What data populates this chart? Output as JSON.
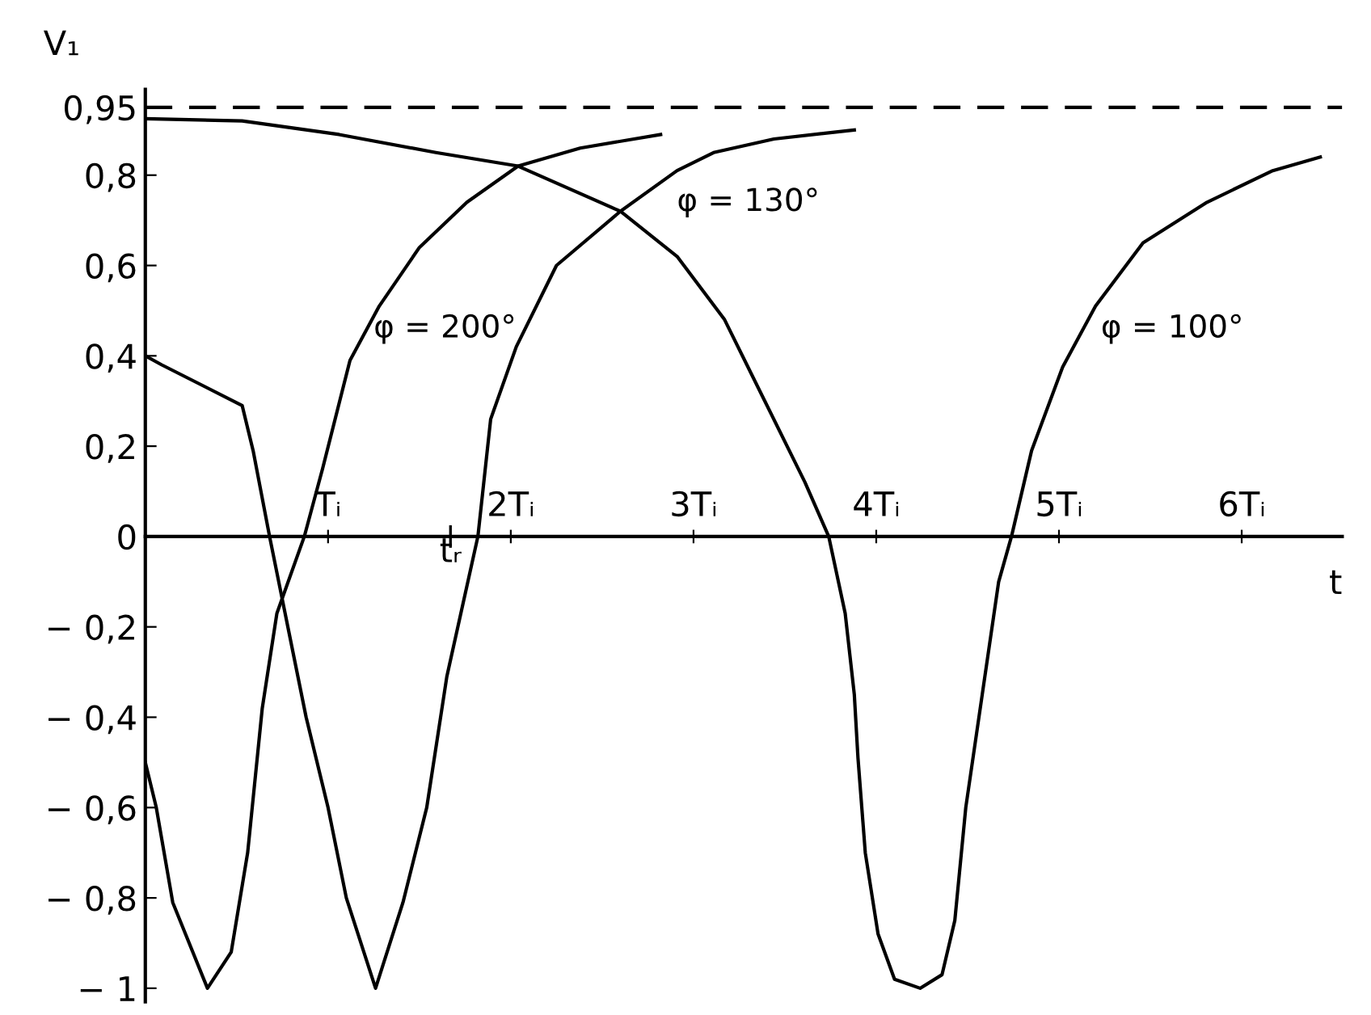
{
  "chart_data": {
    "type": "line",
    "xlabel": "t",
    "ylabel": "V₁",
    "xlim": [
      0,
      6.55
    ],
    "ylim": [
      -1.03,
      0.99
    ],
    "xticks": [
      {
        "value": 1,
        "label": "Tᵢ"
      },
      {
        "value": 2,
        "label": "2Tᵢ"
      },
      {
        "value": 3,
        "label": "3Tᵢ"
      },
      {
        "value": 4,
        "label": "4Tᵢ"
      },
      {
        "value": 5,
        "label": "5Tᵢ"
      },
      {
        "value": 6,
        "label": "6Tᵢ"
      }
    ],
    "yticks": [
      {
        "value": -1,
        "label": "− 1"
      },
      {
        "value": -0.8,
        "label": "− 0,8"
      },
      {
        "value": -0.6,
        "label": "− 0,6"
      },
      {
        "value": -0.4,
        "label": "− 0,4"
      },
      {
        "value": -0.2,
        "label": "− 0,2"
      },
      {
        "value": 0,
        "label": "0"
      },
      {
        "value": 0.2,
        "label": "0,2"
      },
      {
        "value": 0.4,
        "label": "0,4"
      },
      {
        "value": 0.6,
        "label": "0,6"
      },
      {
        "value": 0.8,
        "label": "0,8"
      },
      {
        "value": 0.95,
        "label": "0,95"
      }
    ],
    "grid": false,
    "legend": false,
    "marker": "none",
    "line_style": "solid",
    "ref_lines": [
      {
        "axis": "y",
        "value": 0.95,
        "color": "#000000",
        "line_style": "dashed"
      }
    ],
    "series": [
      {
        "name": "φ = 130°",
        "color": "#000000",
        "x": [
          0,
          0.09,
          0.53,
          0.59,
          0.68,
          0.78,
          0.88,
          1.0,
          1.1,
          1.26,
          1.41,
          1.54,
          1.65,
          1.82,
          1.89,
          2.03,
          2.25,
          2.6,
          2.91,
          3.11,
          3.44,
          3.88
        ],
        "values": [
          0.4,
          0.38,
          0.29,
          0.19,
          0,
          -0.2,
          -0.4,
          -0.6,
          -0.8,
          -1,
          -0.81,
          -0.6,
          -0.31,
          0,
          0.26,
          0.42,
          0.6,
          0.72,
          0.81,
          0.85,
          0.88,
          0.9
        ]
      },
      {
        "name": "φ = 200°",
        "color": "#000000",
        "x": [
          0,
          0.06,
          0.15,
          0.34,
          0.47,
          0.56,
          0.64,
          0.72,
          0.87,
          0.97,
          1.12,
          1.28,
          1.5,
          1.76,
          2.04,
          2.38,
          2.82
        ],
        "values": [
          -0.5,
          -0.6,
          -0.81,
          -1,
          -0.92,
          -0.7,
          -0.38,
          -0.17,
          0,
          0.15,
          0.39,
          0.51,
          0.64,
          0.74,
          0.82,
          0.86,
          0.89
        ]
      },
      {
        "name": "φ = 100°",
        "color": "#000000",
        "x": [
          0,
          0.53,
          1.06,
          1.59,
          2.04,
          2.6,
          2.91,
          3.17,
          3.39,
          3.61,
          3.74,
          3.83,
          3.88,
          3.9,
          3.94,
          4.01,
          4.1,
          4.24,
          4.36,
          4.43,
          4.49,
          4.58,
          4.67,
          4.74,
          4.85,
          5.02,
          5.2,
          5.46,
          5.81,
          6.17,
          6.43
        ],
        "values": [
          0.925,
          0.92,
          0.89,
          0.85,
          0.82,
          0.72,
          0.62,
          0.48,
          0.3,
          0.12,
          0,
          -0.17,
          -0.35,
          -0.49,
          -0.7,
          -0.88,
          -0.98,
          -1,
          -0.97,
          -0.85,
          -0.6,
          -0.35,
          -0.1,
          0,
          0.19,
          0.375,
          0.51,
          0.65,
          0.74,
          0.81,
          0.84
        ]
      }
    ],
    "annotations": [
      "tᵣ"
    ]
  }
}
